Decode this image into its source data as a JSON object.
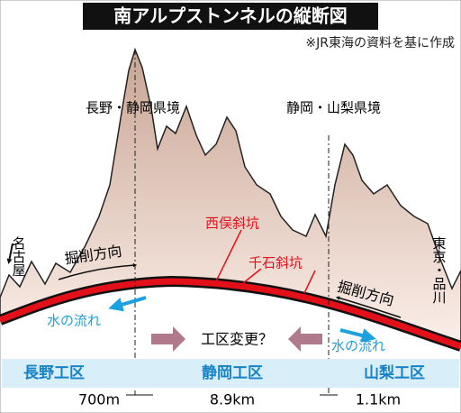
{
  "header": {
    "title": "南アルプストンネルの縦断図",
    "source": "※JR東海の資料を基に作成"
  },
  "labels": {
    "border_left": "長野・静岡県境",
    "border_right": "静岡・山梨県境",
    "shaft_1": "西俣斜坑",
    "shaft_2": "千石斜坑",
    "end_left": "名古屋",
    "end_right": "東京・品川",
    "dig_left": "掘削方向",
    "dig_right": "掘削方向",
    "water_left": "水の流れ",
    "water_right": "水の流れ",
    "change": "工区変更？"
  },
  "zones": [
    {
      "name": "長野工区",
      "length": "700m"
    },
    {
      "name": "静岡工区",
      "length": "8.9km"
    },
    {
      "name": "山梨工区",
      "length": "1.1km"
    }
  ]
}
